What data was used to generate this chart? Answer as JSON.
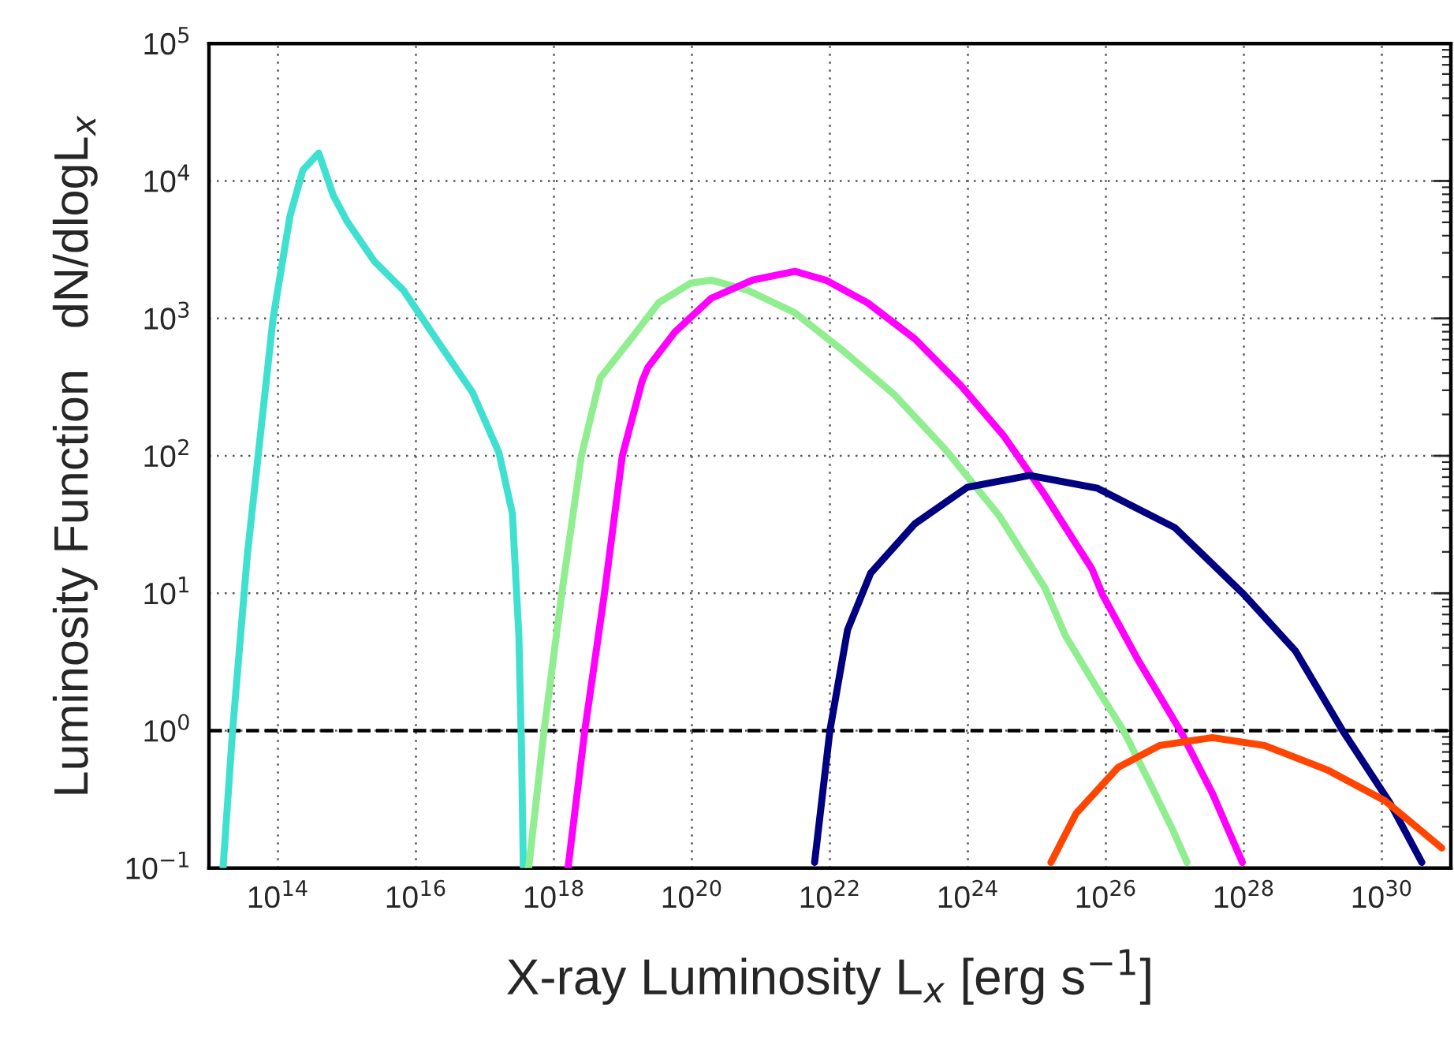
{
  "chart_data": {
    "type": "line",
    "xlabel": "X-ray Luminosity L$_{x}$ [erg s$^{−1}$]",
    "ylabel": "Luminosity Function   dN/dlogL$_{x}$",
    "log": "xy",
    "grid": true,
    "legend": false,
    "line_style": "solid",
    "marker": "none",
    "xlim": [
      10000000000000.0,
      1e+31
    ],
    "xticks": [
      {
        "value": 100000000000000.0,
        "label": "10$^{14}$"
      },
      {
        "value": 1e+16,
        "label": "10$^{16}$"
      },
      {
        "value": 1e+18,
        "label": "10$^{18}$"
      },
      {
        "value": 1e+20,
        "label": "10$^{20}$"
      },
      {
        "value": 1e+22,
        "label": "10$^{22}$"
      },
      {
        "value": 1e+24,
        "label": "10$^{24}$"
      },
      {
        "value": 1e+26,
        "label": "10$^{26}$"
      },
      {
        "value": 1e+28,
        "label": "10$^{28}$"
      },
      {
        "value": 1e+30,
        "label": "10$^{30}$"
      }
    ],
    "ylim": [
      0.1,
      100000
    ],
    "yticks": [
      {
        "value": 0.1,
        "label": "10$^{−1}$"
      },
      {
        "value": 1,
        "label": "10$^{0}$"
      },
      {
        "value": 10,
        "label": "10$^{1}$"
      },
      {
        "value": 100,
        "label": "10$^{2}$"
      },
      {
        "value": 1000,
        "label": "10$^{3}$"
      },
      {
        "value": 10000,
        "label": "10$^{4}$"
      },
      {
        "value": 100000,
        "label": "10$^{5}$"
      }
    ],
    "ref_lines": [
      {
        "axis": "y",
        "value": 1,
        "color": "#000000",
        "line_style": "dashed"
      }
    ],
    "series": [
      {
        "color": "#40e0d0",
        "x": [
          16000000000000.0,
          22000000000000.0,
          36000000000000.0,
          85000000000000.0,
          150000000000000.0,
          230000000000000.0,
          390000000000000.0,
          630000000000000.0,
          1000000000000000.0,
          2500000000000000.0,
          6600000000000000.0,
          2.2e+16,
          6.6e+16,
          1.6e+17,
          2.5e+17,
          3.1e+17,
          3.4e+17,
          3.6e+17
        ],
        "values": [
          0.1,
          1,
          19,
          1000,
          5600,
          12000,
          16000,
          7900,
          5100,
          2600,
          1600,
          650,
          290,
          105,
          38,
          5.0,
          0.68,
          0.1
        ]
      },
      {
        "color": "#90ee90",
        "x": [
          4.3e+17,
          7.2e+17,
          1.3e+18,
          2.5e+18,
          4.7e+18,
          1.4e+19,
          3.3e+19,
          9.5e+19,
          1.9e+20,
          6.5e+20,
          3.1e+21,
          1.5e+22,
          8.5e+22,
          4.8e+23,
          2.8e+24,
          1.3e+25,
          2.6e+25,
          7.6e+25,
          1.8e+26,
          4.3e+26,
          9.3e+26,
          1.5e+27
        ],
        "values": [
          0.1,
          1,
          10,
          100,
          370,
          740,
          1300,
          1800,
          1900,
          1600,
          1100,
          590,
          280,
          110,
          37,
          11,
          4.9,
          2.0,
          1,
          0.42,
          0.19,
          0.11
        ]
      },
      {
        "color": "#ff00ff",
        "x": [
          1.6e+18,
          2.8e+18,
          5.4e+18,
          9.8e+18,
          1.9e+19,
          2.3e+19,
          5.6e+19,
          1.9e+20,
          7.6e+20,
          3.1e+21,
          8.7e+21,
          3.5e+22,
          1.7e+23,
          8.1e+23,
          3.3e+24,
          1.3e+25,
          6.3e+25,
          8.9e+25,
          3e+26,
          1.2e+27,
          3.5e+27,
          9.5e+27
        ],
        "values": [
          0.1,
          1,
          10,
          100,
          350,
          440,
          790,
          1400,
          1900,
          2200,
          1900,
          1300,
          710,
          320,
          140,
          52,
          15,
          9.8,
          3.2,
          1,
          0.35,
          0.11
        ]
      },
      {
        "color": "#000080",
        "x": [
          6e+21,
          1e+22,
          1.8e+22,
          3.9e+22,
          1.7e+23,
          9.8e+23,
          7.8e+24,
          7.6e+25,
          1e+27,
          1e+28,
          5.6e+28,
          2.7e+29,
          1.3e+30,
          3.8e+30
        ],
        "values": [
          0.11,
          1,
          5.4,
          14,
          32,
          59,
          72,
          58,
          30,
          9.8,
          3.8,
          1,
          0.3,
          0.11
        ]
      },
      {
        "color": "#ff4500",
        "x": [
          1.6e+25,
          3.7e+25,
          1.5e+26,
          6e+26,
          3.5e+27,
          2e+28,
          1.6e+29,
          1.1e+30,
          7.4e+30
        ],
        "values": [
          0.11,
          0.25,
          0.54,
          0.78,
          0.89,
          0.78,
          0.52,
          0.31,
          0.14
        ]
      }
    ]
  }
}
